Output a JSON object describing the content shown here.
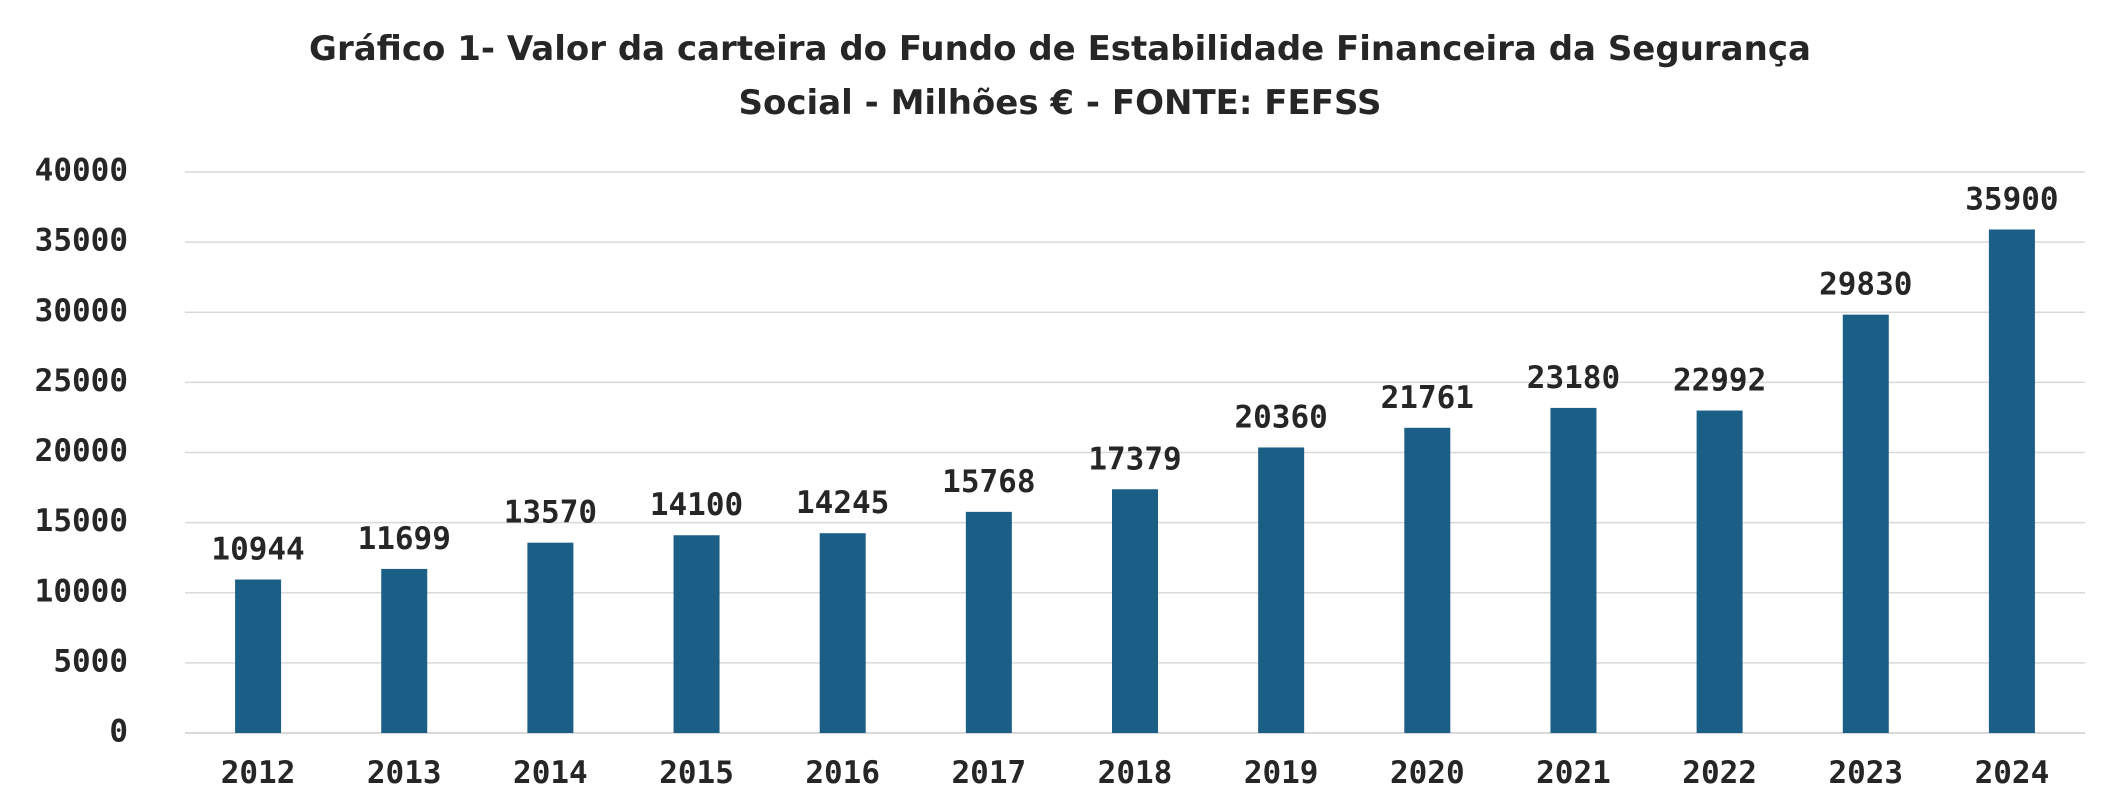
{
  "chart_data": {
    "type": "bar",
    "title_lines": [
      "Gráfico 1- Valor da carteira do Fundo de Estabilidade Financeira da Segurança",
      "Social -  Milhões € - FONTE:  FEFSS"
    ],
    "xlabel": "",
    "ylabel": "",
    "categories": [
      "2012",
      "2013",
      "2014",
      "2015",
      "2016",
      "2017",
      "2018",
      "2019",
      "2020",
      "2021",
      "2022",
      "2023",
      "2024"
    ],
    "series": [
      {
        "values": [
          10944,
          11699,
          13570,
          14100,
          14245,
          15768,
          17379,
          20360,
          21761,
          23180,
          22992,
          29830,
          35900
        ],
        "data_labels": [
          "10944",
          "11699",
          "13570",
          "14100",
          "14245",
          "15768",
          "17379",
          "20360",
          "21761",
          "23180",
          "22992",
          "29830",
          "35900"
        ],
        "color": "#1b5e86"
      }
    ],
    "ylim": [
      0,
      40000
    ],
    "yticks": [
      0,
      5000,
      10000,
      15000,
      20000,
      25000,
      30000,
      35000,
      40000
    ],
    "ytick_labels": [
      "0",
      "5000",
      "10000",
      "15000",
      "20000",
      "25000",
      "30000",
      "35000",
      "40000"
    ],
    "grid": true,
    "grid_color": "#d9d9d9",
    "legend": "none"
  }
}
